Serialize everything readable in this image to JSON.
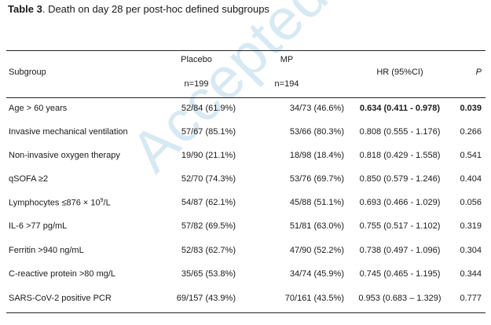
{
  "caption": {
    "label": "Table 3",
    "text": ". Death on day 28 per post-hoc defined subgroups"
  },
  "header": {
    "subgroup": "Subgroup",
    "placebo": "Placebo",
    "placebo_n": "n=199",
    "mp": "MP",
    "mp_n": "n=194",
    "hr": "HR (95%CI)",
    "p": "P"
  },
  "rows": [
    {
      "subgroup": "Age > 60 years",
      "placebo": "52/84 (61.9%)",
      "mp": "34/73 (46.6%)",
      "hr": "0.634 (0.411 - 0.978)",
      "p": "0.039"
    },
    {
      "subgroup": "Invasive mechanical ventilation",
      "placebo": "57/67 (85.1%)",
      "mp": "53/66 (80.3%)",
      "hr": "0.808 (0.555 - 1.176)",
      "p": "0.266"
    },
    {
      "subgroup": "Non-invasive oxygen therapy",
      "placebo": "19/90 (21.1%)",
      "mp": "18/98 (18.4%)",
      "hr": "0.818 (0.429 - 1.558)",
      "p": "0.541"
    },
    {
      "subgroup": "qSOFA ≥2",
      "placebo": "52/70 (74.3%)",
      "mp": "53/76 (69.7%)",
      "hr": "0.850 (0.579 - 1.246)",
      "p": "0.404"
    },
    {
      "subgroup_pre": "Lymphocytes ≤876 × 10",
      "subgroup_sup": "9",
      "subgroup_post": "/L",
      "placebo": "54/87 (62.1%)",
      "mp": "45/88 (51.1%)",
      "hr": "0.693 (0.466 - 1.029)",
      "p": "0.056"
    },
    {
      "subgroup": "IL-6 >77 pg/mL",
      "placebo": "57/82 (69.5%)",
      "mp": "51/81 (63.0%)",
      "hr": "0.755 (0.517 - 1.102)",
      "p": "0.319"
    },
    {
      "subgroup": "Ferritin >940 ng/mL",
      "placebo": "52/83 (62.7%)",
      "mp": "47/90 (52.2%)",
      "hr": "0.738 (0.497 - 1.096)",
      "p": "0.304"
    },
    {
      "subgroup": "C-reactive protein >80 mg/L",
      "placebo": "35/65 (53.8%)",
      "mp": "34/74 (45.9%)",
      "hr": "0.745 (0.465 - 1.195)",
      "p": "0.344"
    },
    {
      "subgroup": "SARS-CoV-2 positive PCR",
      "placebo": "69/157 (43.9%)",
      "mp": "70/161 (43.5%)",
      "hr": "0.953 (0.683 – 1.329)",
      "p": "0.777"
    }
  ],
  "watermark": "Accepted Manuscript"
}
